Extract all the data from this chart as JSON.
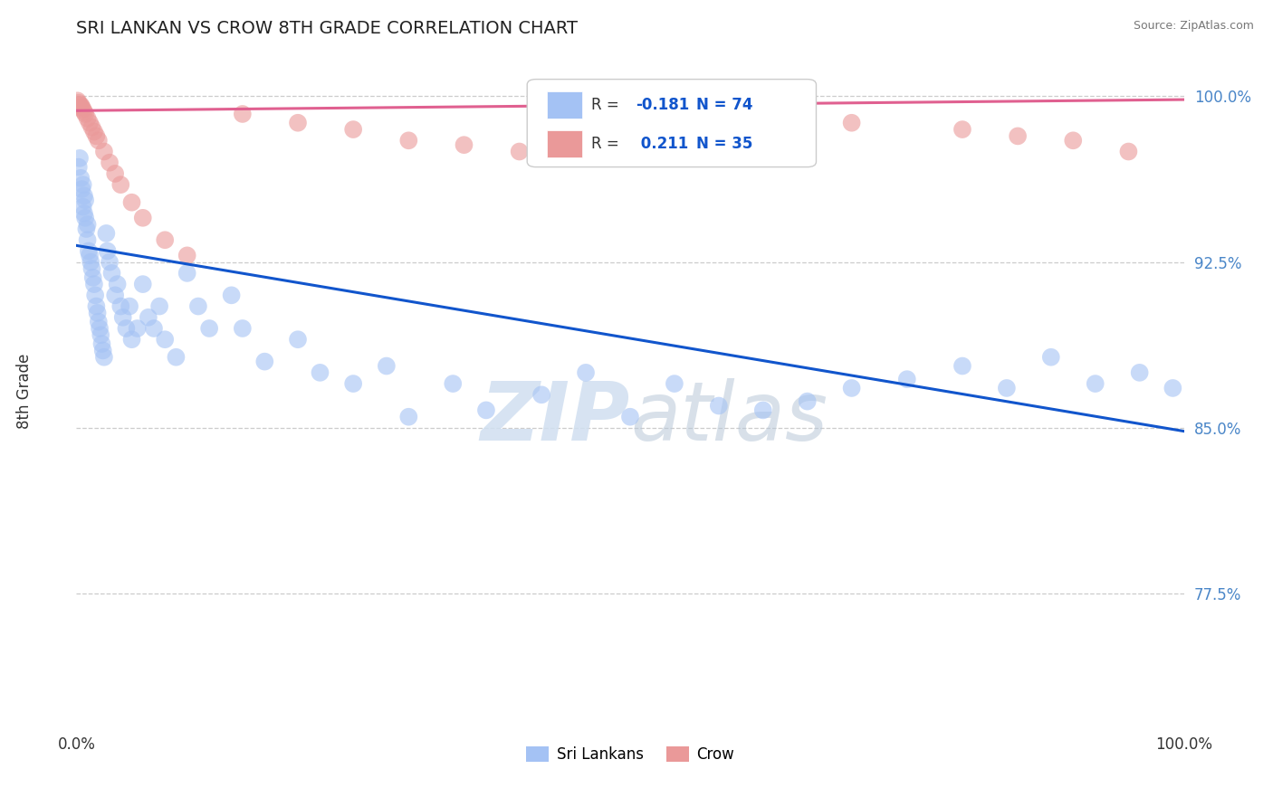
{
  "title": "SRI LANKAN VS CROW 8TH GRADE CORRELATION CHART",
  "source_text": "Source: ZipAtlas.com",
  "ylabel": "8th Grade",
  "xlim": [
    0.0,
    1.0
  ],
  "ylim": [
    0.715,
    1.018
  ],
  "yticks": [
    0.775,
    0.85,
    0.925,
    1.0
  ],
  "ytick_labels": [
    "77.5%",
    "85.0%",
    "92.5%",
    "100.0%"
  ],
  "xticks": [
    0.0,
    1.0
  ],
  "xtick_labels": [
    "0.0%",
    "100.0%"
  ],
  "legend_labels": [
    "Sri Lankans",
    "Crow"
  ],
  "blue_R": -0.181,
  "blue_N": 74,
  "pink_R": 0.211,
  "pink_N": 35,
  "blue_color": "#a4c2f4",
  "pink_color": "#ea9999",
  "blue_line_color": "#1155cc",
  "pink_line_color": "#e06090",
  "watermark_color": "#d0dff0",
  "blue_line_x0": 0.0,
  "blue_line_y0": 0.9325,
  "blue_line_x1": 1.0,
  "blue_line_y1": 0.8485,
  "pink_line_x0": 0.0,
  "pink_line_y0": 0.9935,
  "pink_line_x1": 1.0,
  "pink_line_y1": 0.9985,
  "blue_scatter_x": [
    0.002,
    0.003,
    0.004,
    0.005,
    0.006,
    0.006,
    0.007,
    0.007,
    0.008,
    0.008,
    0.009,
    0.01,
    0.01,
    0.011,
    0.012,
    0.013,
    0.014,
    0.015,
    0.016,
    0.017,
    0.018,
    0.019,
    0.02,
    0.021,
    0.022,
    0.023,
    0.024,
    0.025,
    0.027,
    0.028,
    0.03,
    0.032,
    0.035,
    0.037,
    0.04,
    0.042,
    0.045,
    0.048,
    0.05,
    0.055,
    0.06,
    0.065,
    0.07,
    0.075,
    0.08,
    0.09,
    0.1,
    0.11,
    0.12,
    0.14,
    0.15,
    0.17,
    0.2,
    0.22,
    0.25,
    0.28,
    0.3,
    0.34,
    0.37,
    0.42,
    0.46,
    0.5,
    0.54,
    0.58,
    0.62,
    0.66,
    0.7,
    0.75,
    0.8,
    0.84,
    0.88,
    0.92,
    0.96,
    0.99
  ],
  "blue_scatter_y": [
    0.968,
    0.972,
    0.963,
    0.958,
    0.96,
    0.95,
    0.947,
    0.955,
    0.953,
    0.945,
    0.94,
    0.942,
    0.935,
    0.93,
    0.928,
    0.925,
    0.922,
    0.918,
    0.915,
    0.91,
    0.905,
    0.902,
    0.898,
    0.895,
    0.892,
    0.888,
    0.885,
    0.882,
    0.938,
    0.93,
    0.925,
    0.92,
    0.91,
    0.915,
    0.905,
    0.9,
    0.895,
    0.905,
    0.89,
    0.895,
    0.915,
    0.9,
    0.895,
    0.905,
    0.89,
    0.882,
    0.92,
    0.905,
    0.895,
    0.91,
    0.895,
    0.88,
    0.89,
    0.875,
    0.87,
    0.878,
    0.855,
    0.87,
    0.858,
    0.865,
    0.875,
    0.855,
    0.87,
    0.86,
    0.858,
    0.862,
    0.868,
    0.872,
    0.878,
    0.868,
    0.882,
    0.87,
    0.875,
    0.868
  ],
  "pink_scatter_x": [
    0.001,
    0.002,
    0.003,
    0.004,
    0.005,
    0.006,
    0.007,
    0.008,
    0.01,
    0.012,
    0.014,
    0.016,
    0.018,
    0.02,
    0.025,
    0.03,
    0.035,
    0.04,
    0.05,
    0.06,
    0.08,
    0.1,
    0.15,
    0.2,
    0.25,
    0.3,
    0.35,
    0.4,
    0.5,
    0.6,
    0.7,
    0.8,
    0.85,
    0.9,
    0.95
  ],
  "pink_scatter_y": [
    0.998,
    0.997,
    0.996,
    0.996,
    0.995,
    0.994,
    0.993,
    0.992,
    0.99,
    0.988,
    0.986,
    0.984,
    0.982,
    0.98,
    0.975,
    0.97,
    0.965,
    0.96,
    0.952,
    0.945,
    0.935,
    0.928,
    0.992,
    0.988,
    0.985,
    0.98,
    0.978,
    0.975,
    0.995,
    0.992,
    0.988,
    0.985,
    0.982,
    0.98,
    0.975
  ]
}
